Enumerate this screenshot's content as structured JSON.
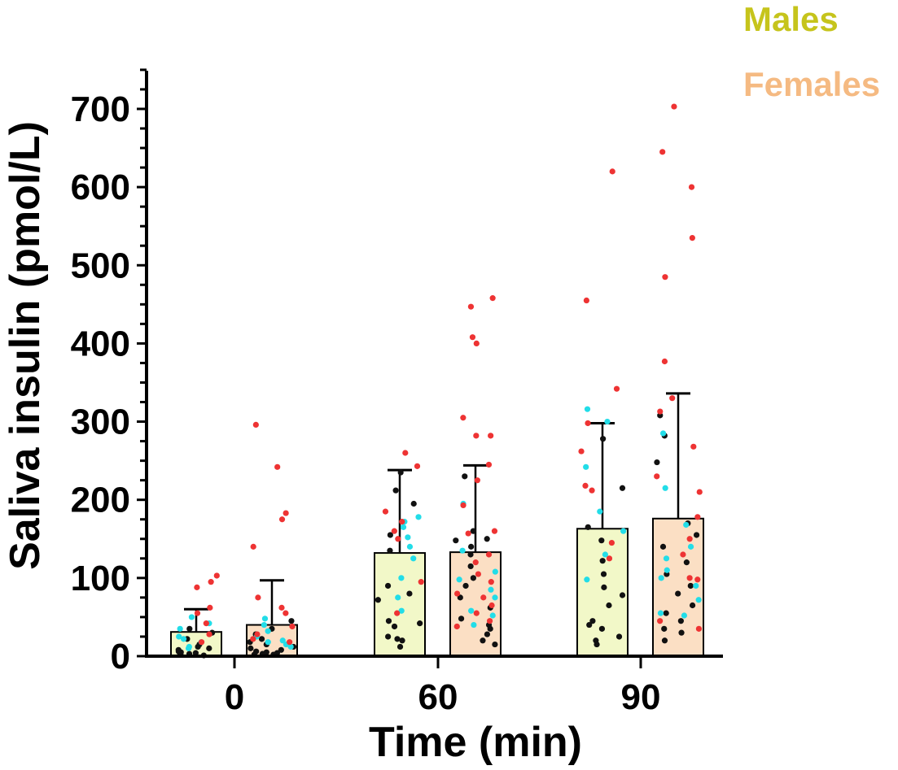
{
  "chart_data": {
    "type": "bar",
    "xlabel": "Time (min)",
    "ylabel": "Saliva insulin (pmol/L)",
    "ylim": [
      0,
      750
    ],
    "yticks": [
      "0",
      "100",
      "200",
      "300",
      "400",
      "500",
      "600",
      "700"
    ],
    "categories": [
      "0",
      "60",
      "90"
    ],
    "legend_position": "top-right",
    "colors": {
      "males_fill": "#f2f8c8",
      "females_fill": "#fbdfc4",
      "males_text": "#c6c41c",
      "females_text": "#f5ba82",
      "dot_red": "#ee3333",
      "dot_cyan": "#22dde8",
      "dot_black": "#111111"
    },
    "series": [
      {
        "name": "Males",
        "values": [
          31,
          132,
          163
        ],
        "sd_upper": [
          60,
          238,
          298
        ],
        "points": [
          {
            "red": [
              103,
              95,
              88,
              62,
              55,
              42,
              28,
              18
            ],
            "cyan": [
              50,
              42,
              35,
              25,
              22,
              18,
              12,
              10
            ],
            "black": [
              35,
              30,
              22,
              15,
              10,
              8,
              5,
              4,
              3,
              2,
              1,
              12,
              6,
              3
            ]
          },
          {
            "red": [
              260,
              243,
              185,
              172,
              160,
              150,
              95,
              55
            ],
            "cyan": [
              178,
              172,
              165,
              152,
              140,
              125,
              100,
              75,
              58
            ],
            "black": [
              235,
              212,
              195,
              155,
              135,
              90,
              80,
              72,
              45,
              42,
              38,
              25,
              22,
              20,
              12
            ]
          },
          {
            "red": [
              620,
              455,
              342,
              298,
              262,
              218,
              212,
              145,
              125
            ],
            "cyan": [
              316,
              300,
              242,
              185,
              160,
              130,
              98
            ],
            "black": [
              278,
              215,
              165,
              148,
              122,
              105,
              88,
              78,
              65,
              45,
              40,
              35,
              25,
              20,
              15
            ]
          }
        ]
      },
      {
        "name": "Females",
        "values": [
          40,
          133,
          176
        ],
        "sd_upper": [
          97,
          244,
          336
        ],
        "points": [
          {
            "red": [
              296,
              242,
              183,
              175,
              140,
              75,
              62,
              55,
              38,
              28,
              22,
              18
            ],
            "cyan": [
              48,
              40,
              32,
              25,
              20,
              18,
              15,
              12
            ],
            "black": [
              45,
              35,
              28,
              22,
              18,
              15,
              12,
              10,
              8,
              6,
              5,
              4,
              3,
              2,
              2
            ]
          },
          {
            "red": [
              458,
              447,
              408,
              400,
              305,
              282,
              282,
              245,
              225,
              193,
              160,
              157,
              130,
              120,
              105,
              95,
              80,
              75,
              65,
              55,
              45,
              38
            ],
            "cyan": [
              195,
              135,
              108,
              98,
              85,
              75,
              58,
              52,
              40
            ],
            "black": [
              230,
              160,
              150,
              148,
              140,
              130,
              115,
              100,
              90,
              75,
              62,
              48,
              40,
              35,
              28,
              20,
              15
            ]
          },
          {
            "red": [
              703,
              645,
              600,
              535,
              485,
              377,
              330,
              313,
              268,
              230,
              210,
              178,
              150,
              130,
              100,
              98,
              45,
              35
            ],
            "cyan": [
              285,
              215,
              168,
              140,
              125,
              110,
              100,
              90,
              72,
              55,
              52
            ],
            "black": [
              308,
              282,
              248,
              170,
              155,
              140,
              120,
              105,
              90,
              80,
              65,
              55,
              45,
              35,
              30,
              20
            ]
          }
        ]
      }
    ]
  }
}
